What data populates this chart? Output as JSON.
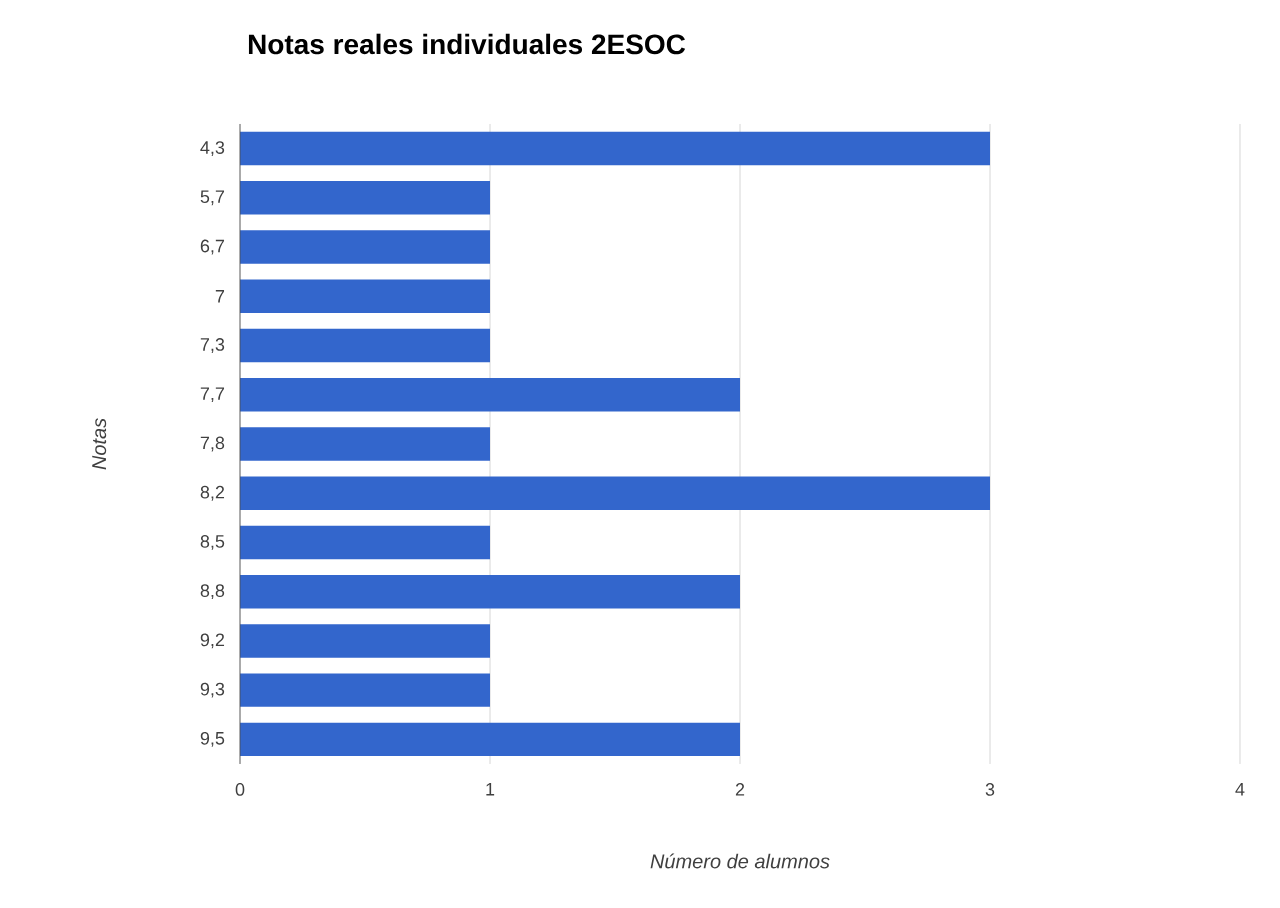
{
  "chart_data": {
    "type": "bar",
    "orientation": "horizontal",
    "title": "Notas reales individuales 2ESOC",
    "xlabel": "Número de alumnos",
    "ylabel": "Notas",
    "categories": [
      "4,3",
      "5,7",
      "6,7",
      "7",
      "7,3",
      "7,7",
      "7,8",
      "8,2",
      "8,5",
      "8,8",
      "9,2",
      "9,3",
      "9,5"
    ],
    "values": [
      3,
      1,
      1,
      1,
      1,
      2,
      1,
      3,
      1,
      2,
      1,
      1,
      2
    ],
    "color": "#3366cc",
    "xlim": [
      0,
      4
    ],
    "xticks": [
      0,
      1,
      2,
      3,
      4
    ],
    "grid": "x"
  }
}
